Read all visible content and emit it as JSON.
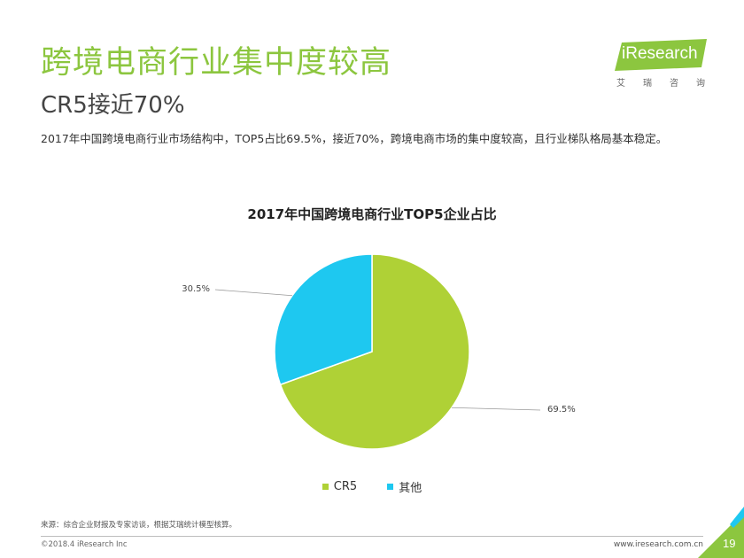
{
  "slide": {
    "title": "跨境电商行业集中度较高",
    "subtitle": "CR5接近70%",
    "intro": "2017年中国跨境电商行业市场结构中，TOP5占比69.5%，接近70%，跨境电商市场的集中度较高，且行业梯队格局基本稳定。"
  },
  "logo": {
    "text": "iResearch",
    "cn": [
      "艾",
      "瑞",
      "咨",
      "询"
    ]
  },
  "chart_data": {
    "type": "pie",
    "title": "2017年中国跨境电商行业TOP5企业占比",
    "categories": [
      "CR5",
      "其他"
    ],
    "values": [
      69.5,
      30.5
    ],
    "labels": [
      "69.5%",
      "30.5%"
    ],
    "colors": [
      "#afd136",
      "#1ec8f0"
    ],
    "legend_position": "bottom"
  },
  "footer": {
    "source": "来源：综合企业财报及专家访谈，根据艾瑞统计模型核算。",
    "copyright": "©2018.4 iResearch Inc",
    "site": "www.iresearch.com.cn",
    "page": "19"
  },
  "colors": {
    "accent": "#8cc63f",
    "corner": "#8cc63f"
  }
}
